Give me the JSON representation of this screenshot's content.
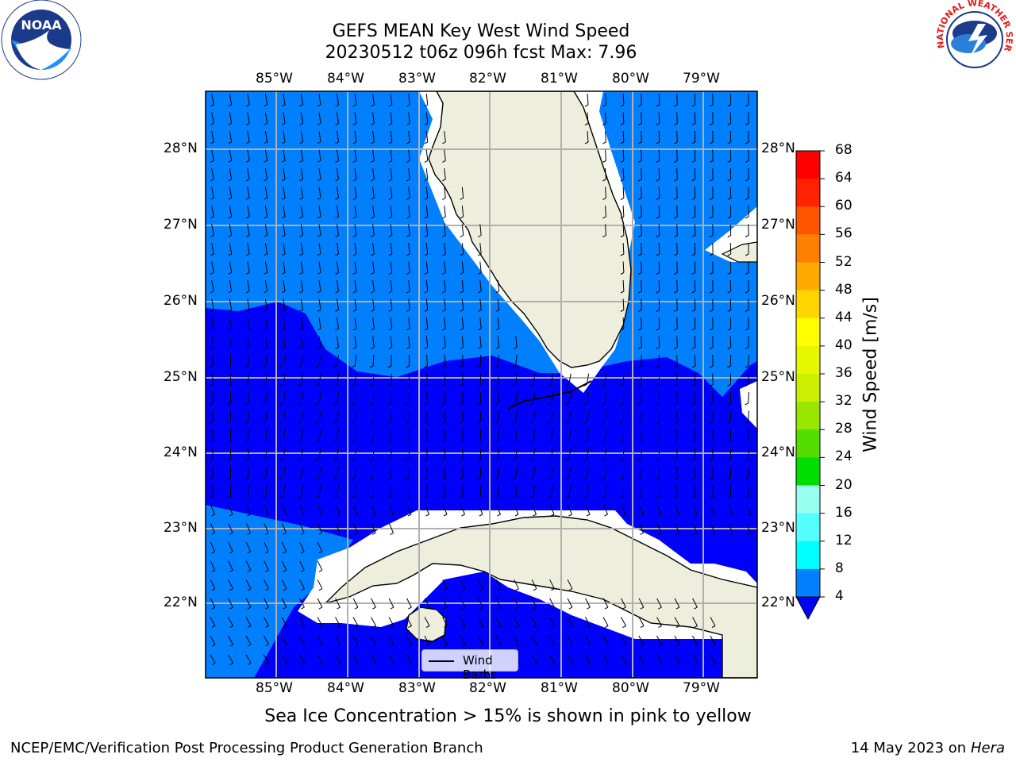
{
  "title_line1": "GEFS MEAN Key West Wind Speed",
  "title_line2": "20230512 t06z 096h fcst   Max: 7.96",
  "lon_labels": [
    "85°W",
    "84°W",
    "83°W",
    "82°W",
    "81°W",
    "80°W",
    "79°W"
  ],
  "lat_labels": [
    "28°N",
    "27°N",
    "26°N",
    "25°N",
    "24°N",
    "23°N",
    "22°N"
  ],
  "colorbar": {
    "label": "Wind Speed [m/s]",
    "ticks": [
      "68",
      "64",
      "60",
      "56",
      "52",
      "48",
      "44",
      "40",
      "36",
      "32",
      "28",
      "24",
      "20",
      "16",
      "12",
      "8",
      "4"
    ],
    "colors": [
      "#ff0000",
      "#ff2a00",
      "#ff5500",
      "#ff8000",
      "#ffaa00",
      "#ffd500",
      "#ffff00",
      "#ddf700",
      "#bbee00",
      "#88e600",
      "#44dd00",
      "#00dd00",
      "#44ee66",
      "#99ffee",
      "#55ffff",
      "#00ffff",
      "#00ddff",
      "#0080ff",
      "#0000ff"
    ],
    "cb_color_order_note": ""
  },
  "legend_label": "Wind Barbs",
  "caption": "Sea Ice Concentration > 15% is shown in pink to yellow",
  "footer_left": "NCEP/EMC/Verification Post Processing Product Generation Branch",
  "footer_date": "14 May 2023 on",
  "footer_host": "Hera",
  "logo_left_text": "NOAA",
  "logo_left_ring_text": "NATIONAL OCEANIC AND ATMOSPHERIC ADMINISTRATION · U.S. DEPARTMENT OF COMMERCE",
  "logo_right_ring_text": "NATIONAL WEATHER SERVICE",
  "map_colors": {
    "land": "#eeeedd",
    "ocean_light": "#0080ff",
    "ocean_dark": "#0000ff",
    "coast_gap": "#ffffff",
    "grid": "#b0b0b0"
  }
}
